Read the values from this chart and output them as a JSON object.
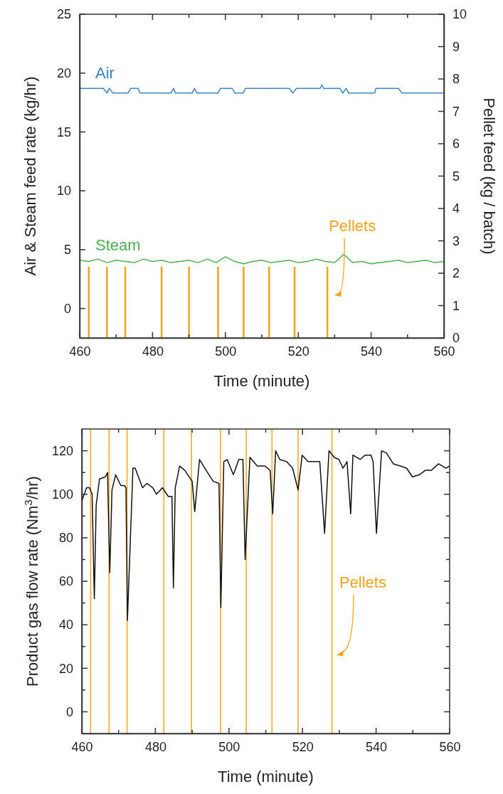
{
  "chart_data": [
    {
      "type": "line",
      "xlabel": "Time (minute)",
      "ylabel": "Air & Steam feed rate (kg/hr)",
      "y2label": "Pellet feed (kg / batch)",
      "xlim": [
        460,
        560
      ],
      "xticks": [
        460,
        {
          "value": 470,
          "label": null
        },
        480,
        {
          "value": 490,
          "label": null
        },
        500,
        {
          "value": 510,
          "label": null
        },
        520,
        {
          "value": 530,
          "label": null
        },
        540,
        {
          "value": 550,
          "label": null
        },
        560
      ],
      "ylim": [
        -2.5,
        25
      ],
      "yticks": [
        0,
        5,
        10,
        15,
        20,
        25
      ],
      "y2lim": [
        0,
        10
      ],
      "y2ticks": [
        0,
        1,
        2,
        3,
        4,
        5,
        6,
        7,
        8,
        9,
        10
      ],
      "grid": false,
      "series": [
        {
          "name": "Air",
          "color": "#3d85c6",
          "x": [
            460,
            466.5,
            467.5,
            468.1,
            469.1,
            473.3,
            474.0,
            476.0,
            476.6,
            485.0,
            485.8,
            486.3,
            490.9,
            491.5,
            492.2,
            498.0,
            498.6,
            501.9,
            502.6,
            504.9,
            505.5,
            517.6,
            518.5,
            519.5,
            526.0,
            526.5,
            527.0,
            531.5,
            532.2,
            533.2,
            533.8,
            541.0,
            541.3,
            547.5,
            548.5,
            560
          ],
          "values": [
            18.7,
            18.7,
            18.3,
            18.7,
            18.3,
            18.3,
            18.7,
            18.7,
            18.3,
            18.3,
            18.7,
            18.3,
            18.3,
            18.7,
            18.3,
            18.3,
            18.7,
            18.7,
            18.3,
            18.3,
            18.7,
            18.7,
            18.3,
            18.7,
            18.7,
            19.0,
            18.7,
            18.7,
            18.3,
            18.7,
            18.3,
            18.3,
            18.7,
            18.7,
            18.3,
            18.3
          ]
        },
        {
          "name": "Steam",
          "color": "#4caf50",
          "x": [
            460,
            462.5,
            465,
            467.5,
            470,
            472.5,
            475,
            477.5,
            480,
            482.5,
            485,
            487.5,
            490,
            492.5,
            495,
            497.5,
            500,
            502.5,
            505,
            507.5,
            510,
            512.5,
            515,
            517.5,
            520,
            522.5,
            525,
            527.5,
            530,
            532.5,
            535,
            537.5,
            540,
            542.5,
            545,
            547.5,
            550,
            552.5,
            555,
            557.5,
            560
          ],
          "values": [
            4.1,
            4.0,
            4.2,
            3.9,
            4.1,
            4.0,
            3.9,
            4.2,
            4.0,
            4.1,
            3.9,
            4.0,
            4.1,
            3.9,
            4.2,
            3.9,
            4.4,
            4.0,
            3.8,
            4.0,
            4.1,
            3.9,
            4.0,
            4.1,
            3.9,
            4.0,
            4.2,
            4.0,
            3.9,
            4.6,
            3.9,
            4.0,
            3.8,
            3.9,
            4.0,
            4.1,
            3.9,
            4.0,
            4.1,
            3.9,
            4.0
          ]
        },
        {
          "name": "Pellets",
          "type": "bar",
          "axis": "y2",
          "color": "#f7a21b",
          "x": [
            462.5,
            467.5,
            472.5,
            482.5,
            490,
            498,
            505,
            512,
            519,
            528
          ],
          "values": [
            2.2,
            2.2,
            2.2,
            2.2,
            2.2,
            2.2,
            2.2,
            2.2,
            2.2,
            2.2
          ]
        }
      ]
    },
    {
      "type": "line",
      "xlabel": "Time (minute)",
      "ylabel": "Product gas flow rate (Nm$^{3}$/hr)",
      "xlim": [
        460,
        560
      ],
      "xticks": [
        460,
        {
          "value": 470,
          "label": null
        },
        480,
        {
          "value": 490,
          "label": null
        },
        500,
        {
          "value": 510,
          "label": null
        },
        520,
        {
          "value": 530,
          "label": null
        },
        540,
        {
          "value": 550,
          "label": null
        },
        560
      ],
      "ylim": [
        -10,
        130
      ],
      "yticks": [
        0,
        {
          "value": 10,
          "label": null
        },
        20,
        {
          "value": 30,
          "label": null
        },
        40,
        {
          "value": 50,
          "label": null
        },
        60,
        {
          "value": 70,
          "label": null
        },
        80,
        {
          "value": 90,
          "label": null
        },
        100,
        {
          "value": 110,
          "label": null
        },
        120
      ],
      "grid": false,
      "series": [
        {
          "color": "#111111",
          "x": [
            460.0,
            461.3,
            462.1,
            462.8,
            463.4,
            463.9,
            464.8,
            466.4,
            467.0,
            467.6,
            468.2,
            469.2,
            470.6,
            471.6,
            472.0,
            472.4,
            473.9,
            474.5,
            476.5,
            477.7,
            479.3,
            480.3,
            481.9,
            483.5,
            484.5,
            484.9,
            485.4,
            486.6,
            488.0,
            490.0,
            490.7,
            492.0,
            493.8,
            495.7,
            497.3,
            497.8,
            498.6,
            499.5,
            501.2,
            502.7,
            503.8,
            504.4,
            505.7,
            507.7,
            509.8,
            511.2,
            511.9,
            512.7,
            513.8,
            515.7,
            517.3,
            518.8,
            519.9,
            521.5,
            524.7,
            526.0,
            527.2,
            528.6,
            529.9,
            531.0,
            532.1,
            533.1,
            533.7,
            535.7,
            537.0,
            538.6,
            539.2,
            540.1,
            541.5,
            542.8,
            544.7,
            546.6,
            548.3,
            549.9,
            551.8,
            553.4,
            555.0,
            557.0,
            559.0,
            560.0
          ],
          "values": [
            97,
            103,
            103,
            100,
            52,
            95,
            107,
            108,
            110,
            64,
            102,
            109,
            104,
            104,
            103,
            42,
            112,
            112,
            103,
            105,
            103,
            100,
            103,
            99,
            99,
            57,
            103,
            113,
            111,
            106,
            92,
            116,
            111,
            106,
            105,
            48,
            115,
            116,
            109,
            116,
            116,
            70,
            117,
            113,
            113,
            111,
            91,
            120,
            116,
            115,
            112,
            102,
            118,
            115,
            115,
            82,
            120,
            117,
            116,
            112,
            115,
            91,
            118,
            116,
            118,
            118,
            115,
            82,
            120,
            119,
            114,
            113,
            112,
            108,
            109,
            111,
            111,
            114,
            112,
            113
          ]
        }
      ],
      "ref_lines": [
        {
          "axis": "x",
          "value": 462.4,
          "color": "#f7a21b"
        },
        {
          "axis": "x",
          "value": 467.4,
          "color": "#f7a21b"
        },
        {
          "axis": "x",
          "value": 472.3,
          "color": "#f7a21b"
        },
        {
          "axis": "x",
          "value": 482.3,
          "color": "#f7a21b"
        },
        {
          "axis": "x",
          "value": 489.8,
          "color": "#f7a21b"
        },
        {
          "axis": "x",
          "value": 497.7,
          "color": "#f7a21b"
        },
        {
          "axis": "x",
          "value": 504.7,
          "color": "#f7a21b"
        },
        {
          "axis": "x",
          "value": 511.7,
          "color": "#f7a21b"
        },
        {
          "axis": "x",
          "value": 518.8,
          "color": "#f7a21b"
        },
        {
          "axis": "x",
          "value": 528.0,
          "color": "#f7a21b"
        }
      ],
      "annotations": [
        "Pellets"
      ]
    }
  ]
}
